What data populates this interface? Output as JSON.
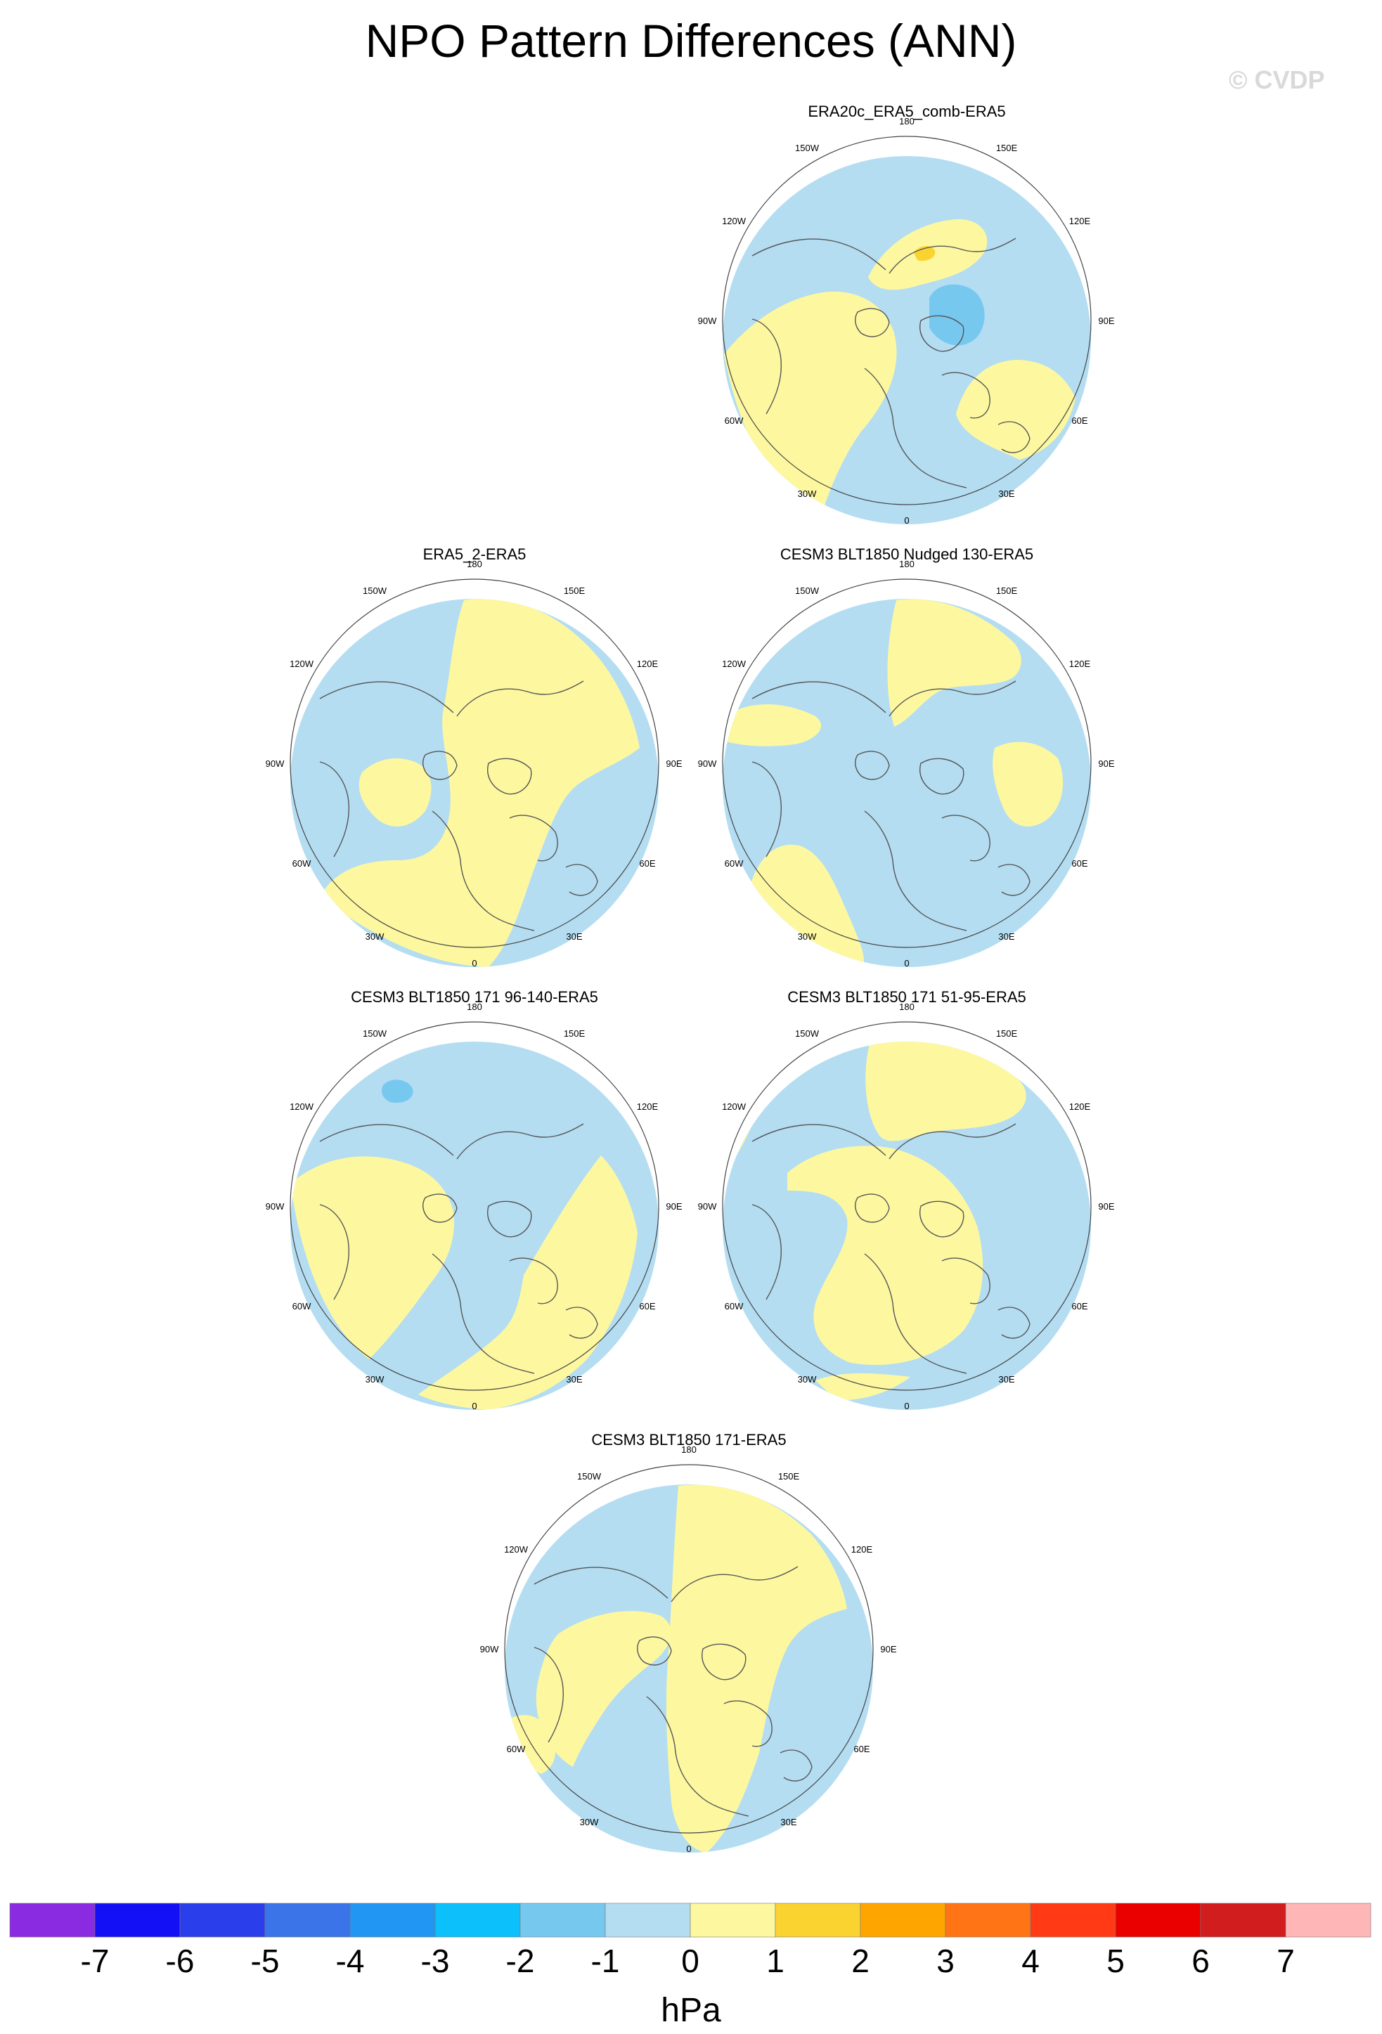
{
  "title": "NPO Pattern Differences (ANN)",
  "watermark": "© CVDP",
  "colors": {
    "coast": "#555555",
    "rim": "#444444",
    "neg1": "#b4ddf2",
    "neg2": "#77c8ef",
    "pos1": "#fdf8a0",
    "pos2": "#fbd331"
  },
  "panels": [
    {
      "title": "ERA20c_ERA5_comb-ERA5",
      "longitude_labels": [
        "180",
        "150E",
        "120E",
        "90E",
        "60E",
        "30E",
        "0",
        "30W",
        "60W",
        "90W",
        "120W",
        "150W"
      ],
      "notable_features": [
        "1 to 2 hPa over northeast Siberia",
        "-2 to -1 hPa over the Arctic north of Siberia"
      ]
    },
    {
      "title": "ERA5_2-ERA5",
      "longitude_labels": [
        "180",
        "150E",
        "120E",
        "90E",
        "60E",
        "30E",
        "0",
        "30W",
        "60W",
        "90W",
        "120W",
        "150W"
      ],
      "notable_features": []
    },
    {
      "title": "CESM3 BLT1850 Nudged 130-ERA5",
      "longitude_labels": [
        "180",
        "150E",
        "120E",
        "90E",
        "60E",
        "30E",
        "0",
        "30W",
        "60W",
        "90W",
        "120W",
        "150W"
      ],
      "notable_features": []
    },
    {
      "title": "CESM3 BLT1850 171 96-140-ERA5",
      "longitude_labels": [
        "180",
        "150E",
        "120E",
        "90E",
        "60E",
        "30E",
        "0",
        "30W",
        "60W",
        "90W",
        "120W",
        "150W"
      ],
      "notable_features": [
        "-2 to -1 hPa over the North Pacific"
      ]
    },
    {
      "title": "CESM3 BLT1850 171 51-95-ERA5",
      "longitude_labels": [
        "180",
        "150E",
        "120E",
        "90E",
        "60E",
        "30E",
        "0",
        "30W",
        "60W",
        "90W",
        "120W",
        "150W"
      ],
      "notable_features": []
    },
    {
      "title": "CESM3 BLT1850 171-ERA5",
      "longitude_labels": [
        "180",
        "150E",
        "120E",
        "90E",
        "60E",
        "30E",
        "0",
        "30W",
        "60W",
        "90W",
        "120W",
        "150W"
      ],
      "notable_features": []
    }
  ],
  "colorbar": {
    "labels": [
      "-7",
      "-6",
      "-5",
      "-4",
      "-3",
      "-2",
      "-1",
      "0",
      "1",
      "2",
      "3",
      "4",
      "5",
      "6",
      "7"
    ],
    "colors": [
      "#8a2be2",
      "#1410f5",
      "#2a3eeb",
      "#3b73e8",
      "#2196f3",
      "#0bc0fb",
      "#77c8ef",
      "#b4ddf2",
      "#fdf8a0",
      "#fbd331",
      "#ffa500",
      "#ff7414",
      "#ff3a14",
      "#eb0000",
      "#d11d1d",
      "#ffb6b6"
    ],
    "units": "hPa"
  }
}
